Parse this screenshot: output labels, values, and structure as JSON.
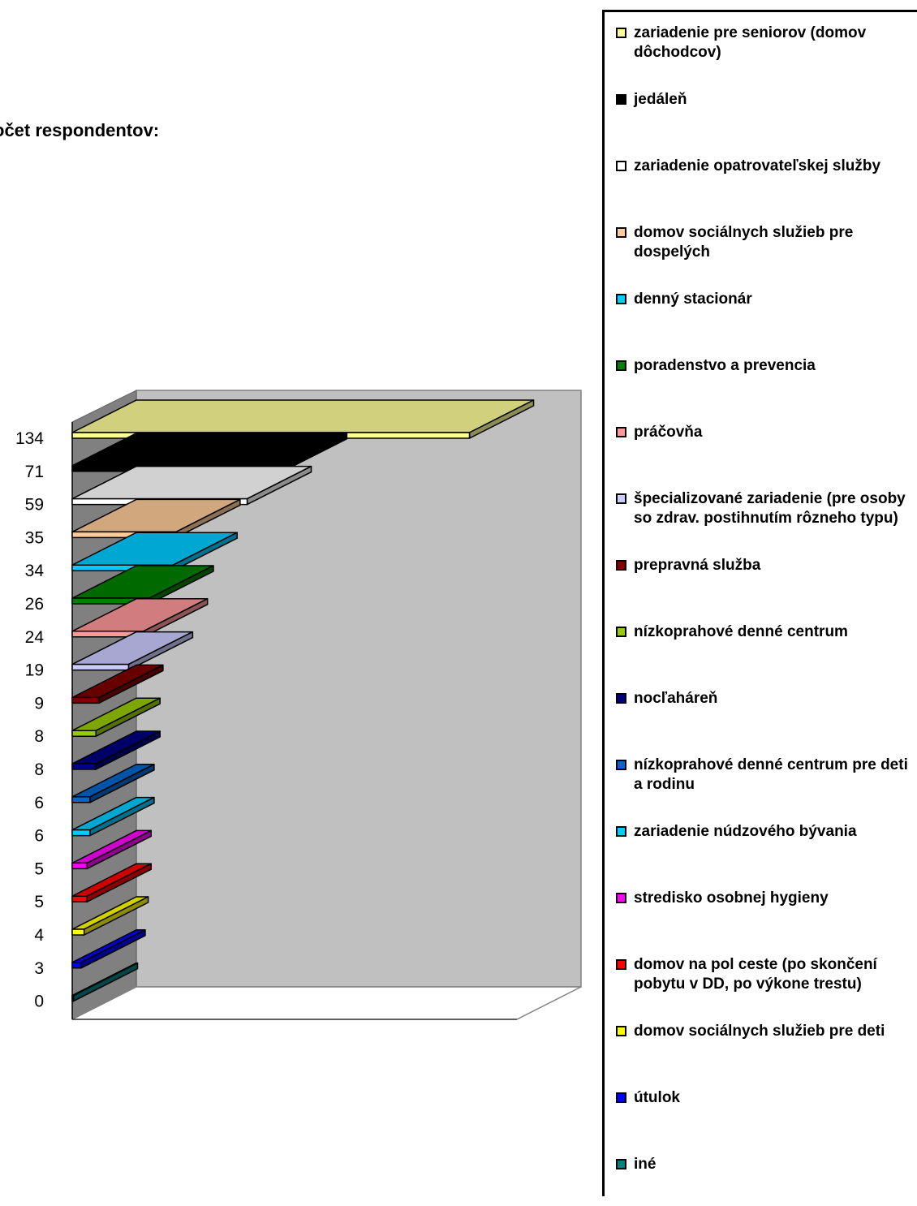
{
  "chart_data": {
    "type": "bar",
    "orientation": "horizontal",
    "three_d": true,
    "title": "očet respondentov:",
    "xlabel": "",
    "ylabel": "",
    "xlim": [
      0,
      150
    ],
    "legend_position": "right",
    "categories": [
      "zariadenie pre seniorov (domov dôchodcov)",
      "jedáleň",
      "zariadenie opatrovateľskej služby",
      "domov sociálnych služieb pre dospelých",
      "denný stacionár",
      "poradenstvo a prevencia",
      "práčovňa",
      "špecializované zariadenie (pre osoby so zdrav. postihnutím rôzneho typu)",
      "prepravná služba",
      "nízkoprahové denné centrum",
      "nocľaháreň",
      "nízkoprahové denné centrum pre deti a rodinu",
      "zariadenie núdzového bývania",
      "stredisko osobnej hygieny",
      "domov na pol ceste (po skončení pobytu v DD, po výkone trestu)",
      "domov sociálnych služieb pre deti",
      "útulok",
      "iné"
    ],
    "tick_labels": [
      "134",
      "71",
      "59",
      "35",
      "34",
      "26",
      "24",
      "19",
      "9",
      "8",
      "8",
      "6",
      "6",
      "5",
      "5",
      "4",
      "3",
      "0"
    ],
    "values": [
      134,
      71,
      59,
      35,
      34,
      26,
      24,
      19,
      9,
      8,
      8,
      6,
      6,
      5,
      5,
      4,
      3,
      0
    ],
    "colors": [
      "#ffff99",
      "#000000",
      "#ffffff",
      "#ffcc99",
      "#00ccff",
      "#008000",
      "#ff9999",
      "#ccccff",
      "#800000",
      "#99cc00",
      "#000080",
      "#0066cc",
      "#00ccff",
      "#ff00ff",
      "#ff0000",
      "#ffff00",
      "#0000ff",
      "#008080"
    ],
    "wall_color": "#c0c0c0",
    "side_wall_color": "#808080"
  }
}
